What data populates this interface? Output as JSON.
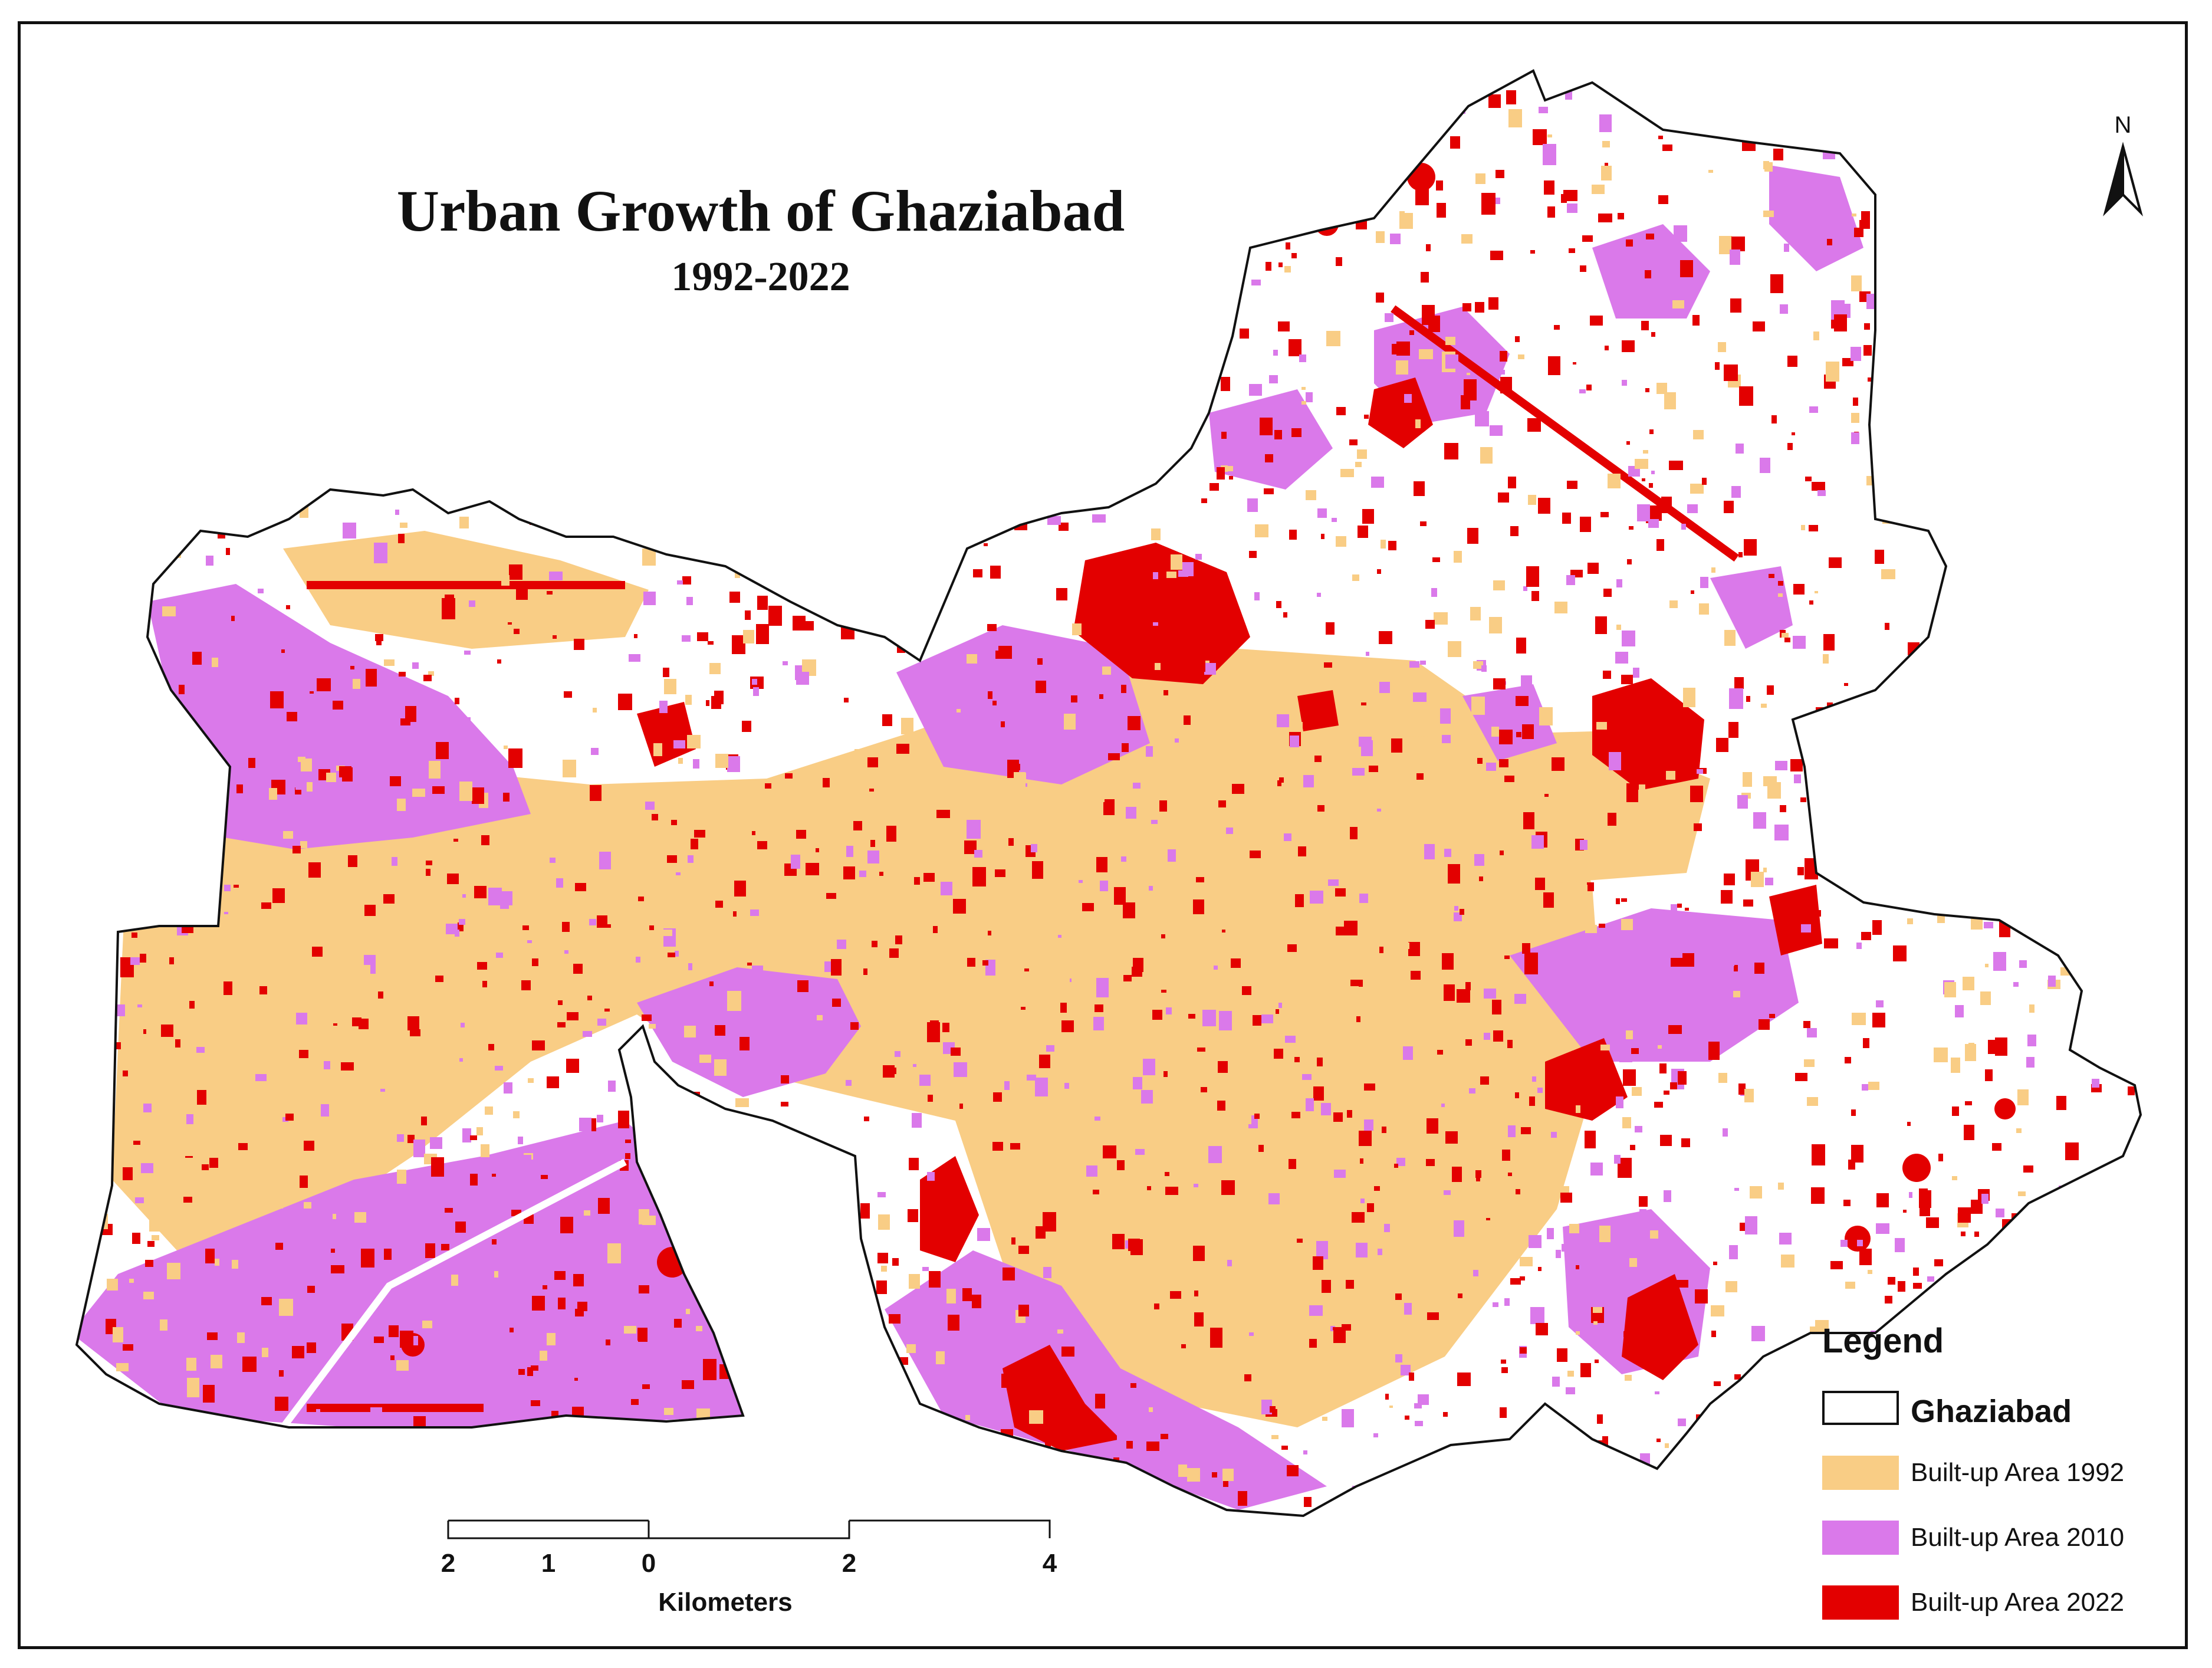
{
  "title": "Urban Growth of Ghaziabad",
  "subtitle": "1992-2022",
  "north_arrow": {
    "label": "N",
    "icon": "north-arrow-icon"
  },
  "legend": {
    "heading": "Legend",
    "items": [
      {
        "label": "Ghaziabad",
        "color": "#ffffff",
        "bold": true
      },
      {
        "label": "Built-up Area 1992",
        "color": "#f9cd85"
      },
      {
        "label": "Built-up Area 2010",
        "color": "#da79ea"
      },
      {
        "label": "Built-up Area 2022",
        "color": "#e30000"
      }
    ]
  },
  "scale_bar": {
    "ticks": [
      "2",
      "1",
      "0",
      "2",
      "4"
    ],
    "unit": "Kilometers"
  },
  "colors": {
    "boundary": "#111111",
    "built_1992": "#f9cd85",
    "built_2010": "#da79ea",
    "built_2022": "#e30000",
    "background": "#ffffff"
  }
}
